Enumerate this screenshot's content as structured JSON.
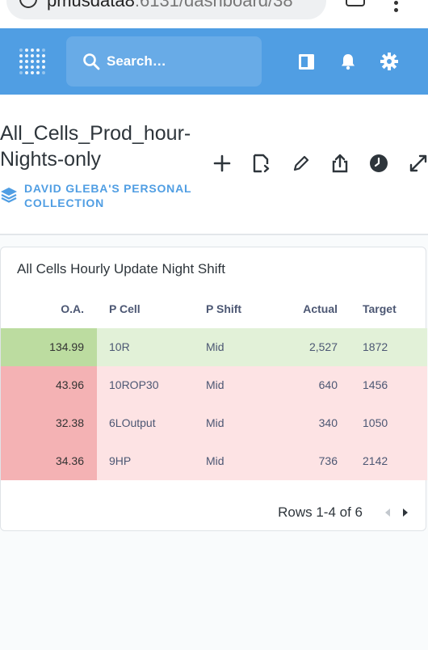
{
  "browser": {
    "url_host": "pmusdata8",
    "url_rest": ":6131/dashboard/38",
    "tab_count": "6"
  },
  "topbar": {
    "search_placeholder": "Search…"
  },
  "dashboard": {
    "title": "All_Cells_Prod_hour-Nights-only",
    "collection": "DAVID GLEBA'S PERSONAL COLLECTION"
  },
  "card": {
    "title": "All Cells Hourly Update Night Shift",
    "columns": [
      "O.A.",
      "P Cell",
      "P Shift",
      "Actual",
      "Target"
    ],
    "rows": [
      {
        "oa": "134.99",
        "cell": "10R",
        "shift": "Mid",
        "actual": "2,527",
        "target": "1872",
        "status": "good"
      },
      {
        "oa": "43.96",
        "cell": "10ROP30",
        "shift": "Mid",
        "actual": "640",
        "target": "1456",
        "status": "bad"
      },
      {
        "oa": "32.38",
        "cell": "6LOutput",
        "shift": "Mid",
        "actual": "340",
        "target": "1050",
        "status": "bad"
      },
      {
        "oa": "34.36",
        "cell": "9HP",
        "shift": "Mid",
        "actual": "736",
        "target": "2142",
        "status": "bad"
      }
    ],
    "pagination": "Rows 1-4 of 6"
  },
  "colors": {
    "brand": "#509ee3",
    "good_strong": "#bcdca0",
    "good_light": "#e2f1d8",
    "bad_strong": "#f4b2b4",
    "bad_light": "#fde3e4"
  },
  "icons": [
    "info-icon",
    "tabs-icon",
    "more-vert-icon",
    "metabase-logo",
    "search-icon",
    "browse-data-icon",
    "bell-icon",
    "gear-icon",
    "collection-icon",
    "add-icon",
    "add-filter-icon",
    "pencil-icon",
    "share-icon",
    "clock-icon",
    "fullscreen-icon",
    "chevron-left-icon",
    "chevron-right-icon"
  ]
}
